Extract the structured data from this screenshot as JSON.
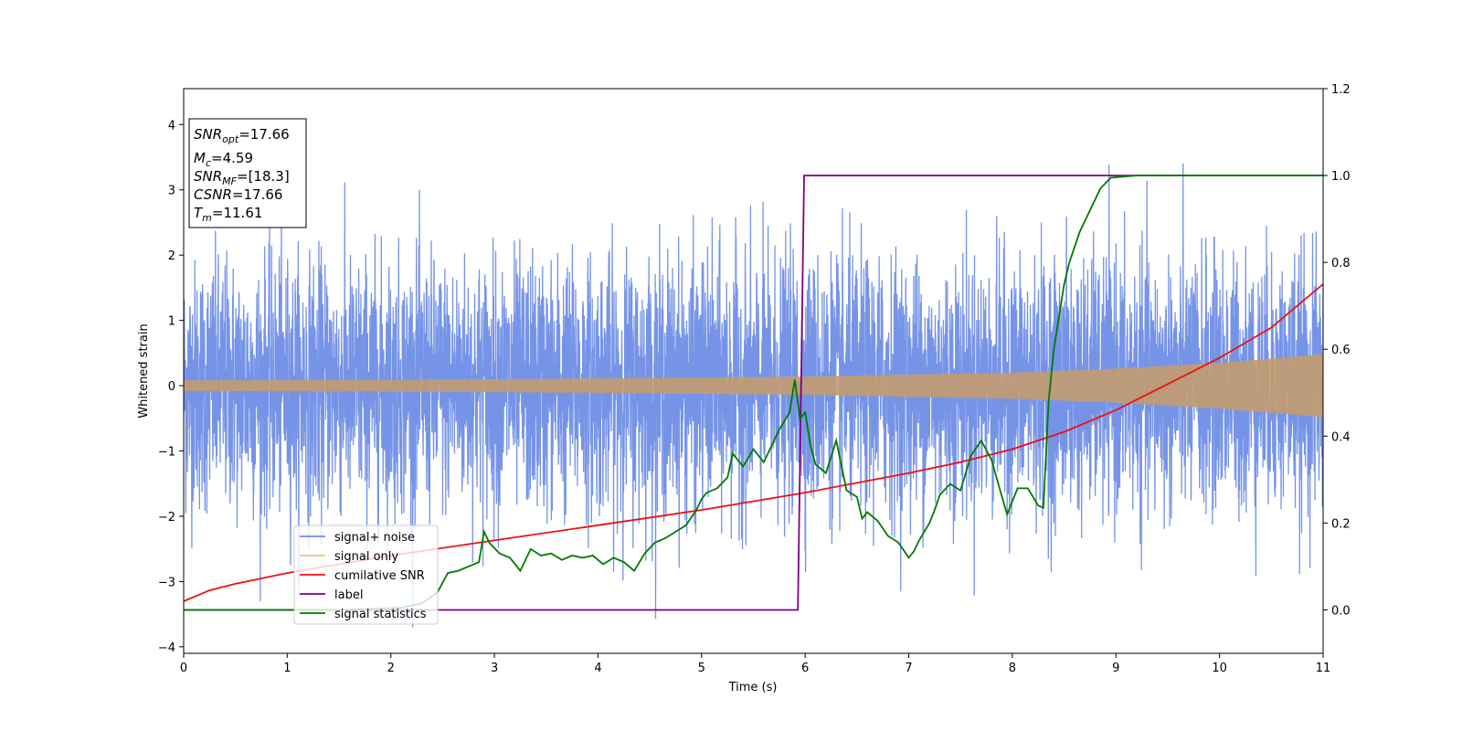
{
  "chart_data": {
    "type": "line",
    "xlabel": "Time (s)",
    "ylabel": "Whitened strain",
    "xlim": [
      0,
      11
    ],
    "ylim": [
      -4.1,
      4.55
    ],
    "y2lim": [
      -0.1,
      1.2
    ],
    "xticks": [
      "0",
      "1",
      "2",
      "3",
      "4",
      "5",
      "6",
      "7",
      "8",
      "9",
      "10",
      "11"
    ],
    "yticks": [
      "−4",
      "−3",
      "−2",
      "−1",
      "0",
      "1",
      "2",
      "3",
      "4"
    ],
    "y2ticks": [
      "0.0",
      "0.2",
      "0.4",
      "0.6",
      "0.8",
      "1.0",
      "1.2"
    ],
    "grid": false,
    "legend_position": "lower-left",
    "info_box": [
      {
        "main": "SNR",
        "sub": "opt",
        "value": "=17.66"
      },
      {
        "main": "M",
        "sub": "c",
        "value": "=4.59"
      },
      {
        "main": "SNR",
        "sub": "MF",
        "value": "=[18.3]"
      },
      {
        "main": "CSNR",
        "sub": "",
        "value": "=17.66"
      },
      {
        "main": "T",
        "sub": "m",
        "value": "=11.61"
      }
    ],
    "series": [
      {
        "name": "signal+ noise",
        "color": "#6f8ee6",
        "axis": "left",
        "kind": "noise",
        "spread": 0.95,
        "range": [
          -3.7,
          4.18
        ]
      },
      {
        "name": "signal only",
        "color": "#f5c07a",
        "axis": "left",
        "kind": "chirp",
        "envelope_x": [
          0,
          2,
          4,
          6,
          8,
          9,
          10,
          11
        ],
        "envelope_y": [
          0.08,
          0.09,
          0.11,
          0.14,
          0.2,
          0.26,
          0.35,
          0.48
        ]
      },
      {
        "name": "cumilative SNR",
        "color": "#ee1111",
        "axis": "right",
        "x": [
          0,
          0.25,
          0.5,
          1,
          1.5,
          2,
          3,
          4,
          5,
          6,
          7,
          7.5,
          8,
          8.5,
          9,
          9.5,
          10,
          10.5,
          11
        ],
        "y": [
          0.02,
          0.045,
          0.06,
          0.085,
          0.105,
          0.125,
          0.16,
          0.195,
          0.23,
          0.27,
          0.315,
          0.34,
          0.37,
          0.41,
          0.46,
          0.52,
          0.58,
          0.65,
          0.75
        ]
      },
      {
        "name": "label",
        "color": "#800080",
        "axis": "right",
        "x": [
          0,
          5.93,
          5.99,
          11
        ],
        "y": [
          0.0,
          0.0,
          1.0,
          1.0
        ]
      },
      {
        "name": "signal statistics",
        "color": "#007a00",
        "axis": "right",
        "x": [
          0,
          1.5,
          2.1,
          2.3,
          2.45,
          2.55,
          2.65,
          2.75,
          2.85,
          2.9,
          2.95,
          3.05,
          3.15,
          3.25,
          3.35,
          3.45,
          3.55,
          3.65,
          3.75,
          3.85,
          3.95,
          4.05,
          4.15,
          4.25,
          4.35,
          4.45,
          4.55,
          4.65,
          4.75,
          4.85,
          4.95,
          5.0,
          5.05,
          5.15,
          5.25,
          5.3,
          5.4,
          5.5,
          5.6,
          5.7,
          5.75,
          5.85,
          5.9,
          5.95,
          6.0,
          6.05,
          6.1,
          6.2,
          6.3,
          6.4,
          6.5,
          6.55,
          6.6,
          6.7,
          6.8,
          6.9,
          7.0,
          7.05,
          7.1,
          7.2,
          7.25,
          7.3,
          7.4,
          7.5,
          7.6,
          7.7,
          7.8,
          7.9,
          7.95,
          8.05,
          8.15,
          8.25,
          8.3,
          8.35,
          8.4,
          8.5,
          8.55,
          8.65,
          8.75,
          8.85,
          8.95,
          9.2,
          9.5,
          10,
          11
        ],
        "y": [
          0.0,
          0.0,
          0.005,
          0.015,
          0.04,
          0.085,
          0.09,
          0.1,
          0.11,
          0.18,
          0.155,
          0.13,
          0.12,
          0.09,
          0.14,
          0.125,
          0.13,
          0.115,
          0.125,
          0.12,
          0.125,
          0.105,
          0.12,
          0.11,
          0.09,
          0.13,
          0.155,
          0.165,
          0.18,
          0.195,
          0.23,
          0.255,
          0.27,
          0.28,
          0.305,
          0.36,
          0.33,
          0.37,
          0.34,
          0.39,
          0.415,
          0.455,
          0.53,
          0.44,
          0.455,
          0.38,
          0.335,
          0.315,
          0.39,
          0.275,
          0.26,
          0.21,
          0.225,
          0.205,
          0.17,
          0.155,
          0.12,
          0.135,
          0.16,
          0.2,
          0.23,
          0.265,
          0.29,
          0.275,
          0.355,
          0.39,
          0.345,
          0.26,
          0.22,
          0.28,
          0.28,
          0.24,
          0.235,
          0.48,
          0.6,
          0.75,
          0.8,
          0.87,
          0.92,
          0.97,
          0.995,
          1.0,
          1.0,
          1.0,
          1.0
        ]
      }
    ]
  }
}
